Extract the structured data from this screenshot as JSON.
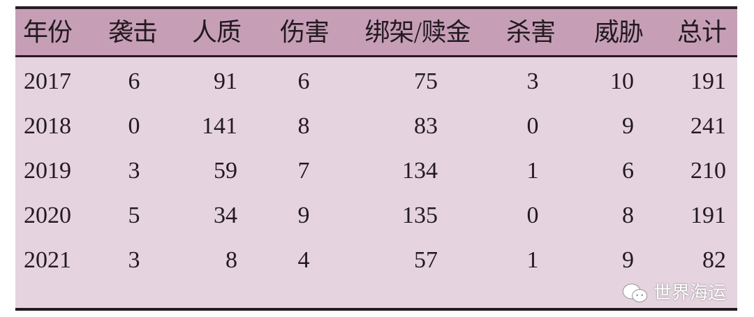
{
  "headers": [
    "年份",
    "袭击",
    "人质",
    "伤害",
    "绑架/赎金",
    "杀害",
    "威胁",
    "总计"
  ],
  "rows": [
    [
      "2017",
      "6",
      "91",
      "6",
      "75",
      "3",
      "10",
      "191"
    ],
    [
      "2018",
      "0",
      "141",
      "8",
      "83",
      "0",
      "9",
      "241"
    ],
    [
      "2019",
      "3",
      "59",
      "7",
      "134",
      "1",
      "6",
      "210"
    ],
    [
      "2020",
      "5",
      "34",
      "9",
      "135",
      "0",
      "8",
      "191"
    ],
    [
      "2021",
      "3",
      "8",
      "4",
      "57",
      "1",
      "9",
      "82"
    ]
  ],
  "watermark": "世界海运",
  "colors": {
    "header_bg": "#c69fb7",
    "body_bg": "#e5d3df",
    "rule": "#2a1a24"
  }
}
